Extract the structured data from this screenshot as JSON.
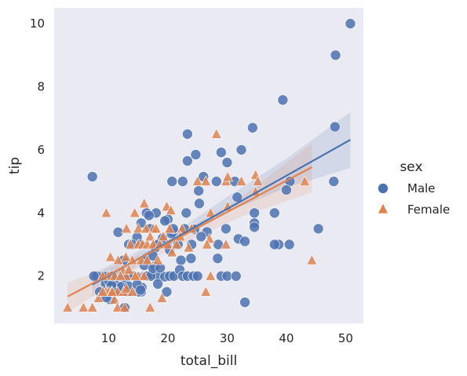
{
  "chart_data": {
    "type": "scatter",
    "xlabel": "total_bill",
    "ylabel": "tip",
    "xlim": [
      0.8,
      53.0
    ],
    "ylim": [
      0.5,
      10.5
    ],
    "x_ticks": [
      10,
      20,
      30,
      40,
      50
    ],
    "y_ticks": [
      2,
      4,
      6,
      8,
      10
    ],
    "grid": false,
    "legend": {
      "title": "sex",
      "placement": "right"
    },
    "series": [
      {
        "name": "Male",
        "color": "#4c72b0",
        "marker": "circle",
        "points": [
          [
            50.8,
            10.0
          ],
          [
            48.3,
            9.0
          ],
          [
            39.4,
            7.58
          ],
          [
            48.2,
            6.73
          ],
          [
            34.3,
            6.7
          ],
          [
            23.3,
            6.5
          ],
          [
            24.7,
            5.85
          ],
          [
            29.0,
            5.92
          ],
          [
            32.4,
            6.0
          ],
          [
            7.25,
            5.15
          ],
          [
            23.3,
            5.65
          ],
          [
            30.0,
            5.6
          ],
          [
            28.2,
            5.0
          ],
          [
            31.3,
            5.0
          ],
          [
            26.0,
            5.15
          ],
          [
            20.7,
            5.0
          ],
          [
            22.5,
            5.0
          ],
          [
            48.0,
            5.0
          ],
          [
            40.6,
            5.0
          ],
          [
            25.2,
            4.7
          ],
          [
            40.0,
            4.73
          ],
          [
            25.3,
            4.3
          ],
          [
            34.6,
            4.0
          ],
          [
            38.0,
            4.0
          ],
          [
            31.7,
            4.5
          ],
          [
            23.1,
            4.0
          ],
          [
            16.4,
            4.0
          ],
          [
            18.0,
            4.0
          ],
          [
            15.5,
            3.68
          ],
          [
            20.0,
            3.8
          ],
          [
            17.0,
            3.5
          ],
          [
            16.8,
            3.92
          ],
          [
            19.5,
            3.75
          ],
          [
            19.8,
            3.0
          ],
          [
            22.8,
            3.5
          ],
          [
            24.5,
            3.48
          ],
          [
            26.6,
            3.4
          ],
          [
            34.6,
            3.68
          ],
          [
            34.6,
            3.55
          ],
          [
            45.4,
            3.5
          ],
          [
            29.8,
            3.5
          ],
          [
            31.9,
            3.18
          ],
          [
            33.0,
            3.1
          ],
          [
            38.7,
            3.0
          ],
          [
            38.0,
            3.0
          ],
          [
            40.5,
            3.0
          ],
          [
            21.0,
            3.4
          ],
          [
            24.0,
            3.0
          ],
          [
            11.6,
            3.39
          ],
          [
            13.4,
            3.0
          ],
          [
            14.8,
            3.23
          ],
          [
            18.2,
            3.0
          ],
          [
            19.1,
            3.2
          ],
          [
            20.6,
            3.35
          ],
          [
            21.7,
            3.0
          ],
          [
            28.5,
            3.0
          ],
          [
            17.9,
            2.9
          ],
          [
            16.0,
            2.0
          ],
          [
            14.0,
            3.0
          ],
          [
            15.4,
            3.0
          ],
          [
            16.3,
            2.5
          ],
          [
            17.5,
            2.64
          ],
          [
            18.3,
            3.0
          ],
          [
            20.3,
            2.83
          ],
          [
            22.2,
            2.5
          ],
          [
            23.9,
            2.56
          ],
          [
            28.4,
            2.56
          ],
          [
            12.5,
            2.5
          ],
          [
            13.5,
            2.0
          ],
          [
            14.5,
            2.0
          ],
          [
            15.0,
            1.96
          ],
          [
            15.5,
            1.5
          ],
          [
            16.0,
            2.34
          ],
          [
            17.8,
            2.31
          ],
          [
            18.3,
            2.0
          ],
          [
            19.5,
            1.98
          ],
          [
            20.3,
            2.0
          ],
          [
            21.0,
            2.0
          ],
          [
            22.0,
            2.2
          ],
          [
            22.5,
            2.0
          ],
          [
            23.3,
            2.0
          ],
          [
            24.3,
            2.0
          ],
          [
            25.0,
            2.0
          ],
          [
            29.0,
            2.0
          ],
          [
            30.0,
            2.0
          ],
          [
            31.5,
            2.0
          ],
          [
            33.0,
            1.17
          ],
          [
            12.0,
            2.0
          ],
          [
            11.0,
            2.0
          ],
          [
            10.0,
            2.0
          ],
          [
            9.0,
            2.0
          ],
          [
            8.0,
            2.0
          ],
          [
            7.5,
            2.0
          ],
          [
            8.5,
            1.5
          ],
          [
            9.5,
            1.76
          ],
          [
            10.3,
            1.66
          ],
          [
            10.3,
            1.25
          ],
          [
            10.5,
            1.5
          ],
          [
            11.0,
            1.5
          ],
          [
            11.3,
            1.7
          ],
          [
            12.5,
            1.56
          ],
          [
            12.7,
            1.0
          ],
          [
            13.2,
            1.5
          ],
          [
            13.9,
            2.0
          ],
          [
            15.0,
            1.5
          ],
          [
            15.6,
            1.64
          ],
          [
            16.3,
            2.0
          ],
          [
            18.3,
            1.75
          ],
          [
            19.8,
            1.5
          ],
          [
            9.6,
            1.32
          ],
          [
            10.1,
            1.83
          ],
          [
            10.5,
            1.71
          ],
          [
            10.7,
            2.0
          ],
          [
            11.6,
            1.5
          ],
          [
            12.2,
            1.67
          ],
          [
            12.9,
            1.94
          ],
          [
            13.4,
            1.68
          ],
          [
            14.3,
            2.0
          ],
          [
            14.8,
            1.73
          ],
          [
            15.4,
            1.56
          ],
          [
            16.5,
            2.0
          ],
          [
            17.1,
            2.0
          ],
          [
            17.5,
            2.24
          ],
          [
            18.7,
            2.26
          ],
          [
            20.9,
            3.5
          ],
          [
            25.6,
            3.25
          ]
        ]
      },
      {
        "name": "Female",
        "color": "#dd8452",
        "marker": "triangle",
        "points": [
          [
            28.2,
            6.5
          ],
          [
            29.8,
            5.0
          ],
          [
            25.0,
            5.0
          ],
          [
            26.4,
            5.0
          ],
          [
            30.1,
            5.14
          ],
          [
            32.4,
            5.0
          ],
          [
            34.8,
            5.2
          ],
          [
            35.2,
            5.0
          ],
          [
            43.1,
            5.0
          ],
          [
            44.3,
            2.5
          ],
          [
            34.8,
            4.67
          ],
          [
            16.0,
            4.3
          ],
          [
            9.6,
            4.0
          ],
          [
            14.4,
            4.0
          ],
          [
            19.8,
            4.2
          ],
          [
            20.5,
            4.08
          ],
          [
            27.2,
            4.0
          ],
          [
            30.1,
            4.2
          ],
          [
            15.0,
            3.5
          ],
          [
            16.3,
            3.5
          ],
          [
            17.5,
            3.5
          ],
          [
            18.0,
            3.5
          ],
          [
            20.3,
            3.5
          ],
          [
            22.4,
            3.5
          ],
          [
            24.0,
            3.5
          ],
          [
            27.0,
            3.18
          ],
          [
            13.0,
            3.5
          ],
          [
            13.7,
            3.0
          ],
          [
            14.0,
            2.5
          ],
          [
            15.0,
            3.0
          ],
          [
            15.7,
            3.0
          ],
          [
            16.5,
            3.0
          ],
          [
            17.0,
            3.25
          ],
          [
            17.5,
            3.0
          ],
          [
            18.6,
            3.0
          ],
          [
            19.2,
            3.25
          ],
          [
            20.0,
            3.0
          ],
          [
            20.7,
            2.75
          ],
          [
            21.5,
            3.0
          ],
          [
            22.1,
            3.25
          ],
          [
            23.5,
            2.9
          ],
          [
            26.6,
            3.0
          ],
          [
            29.8,
            3.0
          ],
          [
            10.3,
            2.6
          ],
          [
            11.6,
            2.5
          ],
          [
            12.3,
            2.2
          ],
          [
            12.9,
            2.6
          ],
          [
            13.0,
            2.0
          ],
          [
            13.4,
            2.2
          ],
          [
            14.5,
            2.0
          ],
          [
            15.0,
            2.0
          ],
          [
            15.5,
            2.5
          ],
          [
            16.0,
            2.0
          ],
          [
            16.5,
            2.5
          ],
          [
            18.3,
            2.5
          ],
          [
            10.0,
            2.0
          ],
          [
            11.0,
            2.0
          ],
          [
            11.5,
            1.5
          ],
          [
            12.0,
            2.0
          ],
          [
            12.5,
            1.5
          ],
          [
            13.0,
            1.6
          ],
          [
            14.0,
            1.5
          ],
          [
            14.5,
            2.0
          ],
          [
            9.0,
            2.0
          ],
          [
            9.5,
            1.5
          ],
          [
            10.0,
            1.5
          ],
          [
            10.5,
            1.5
          ],
          [
            11.0,
            1.25
          ],
          [
            11.5,
            1.0
          ],
          [
            12.7,
            1.0
          ],
          [
            17.0,
            1.0
          ],
          [
            19.0,
            1.3
          ],
          [
            26.4,
            1.5
          ],
          [
            3.07,
            1.0
          ],
          [
            5.75,
            1.0
          ],
          [
            7.25,
            1.0
          ],
          [
            8.3,
            1.3
          ],
          [
            9.0,
            1.5
          ],
          [
            10.6,
            1.5
          ],
          [
            27.2,
            2.0
          ]
        ]
      }
    ],
    "regression": [
      {
        "series": "Male",
        "x": [
          7.25,
          50.81
        ],
        "y": [
          1.73,
          6.32
        ],
        "ci_x": [
          7.25,
          20.0,
          29.0,
          40.0,
          50.81
        ],
        "ci_low": [
          1.35,
          2.98,
          3.95,
          4.8,
          5.43
        ],
        "ci_high": [
          2.08,
          3.23,
          4.38,
          5.72,
          7.2
        ]
      },
      {
        "series": "Female",
        "x": [
          3.07,
          44.3
        ],
        "y": [
          1.35,
          5.45
        ],
        "ci_x": [
          3.07,
          10.0,
          18.0,
          25.0,
          32.0,
          38.0,
          44.3
        ],
        "ci_low": [
          0.85,
          1.68,
          2.62,
          3.25,
          3.85,
          4.25,
          4.65
        ],
        "ci_high": [
          1.8,
          2.25,
          2.92,
          3.68,
          4.45,
          5.3,
          6.2
        ]
      }
    ]
  }
}
